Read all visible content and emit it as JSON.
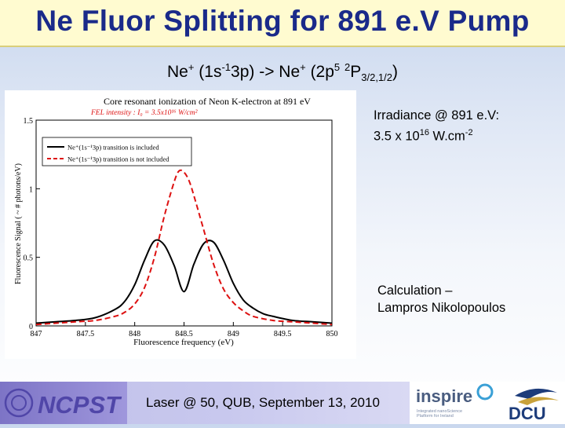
{
  "slide": {
    "title": "Ne Fluor Splitting for 891 e.V Pump",
    "subtitle": {
      "p1": "Ne",
      "s1": "+",
      "p2": " (1s",
      "s2": "-1",
      "p3": "3p) -> Ne",
      "s3": "+",
      "p4": " (2p",
      "s4": "5",
      "p5": " ",
      "s5": "2",
      "p6": "P",
      "sub": "3/2,1/2",
      "p7": ")"
    },
    "irradiance": {
      "line1": "Irradiance @ 891 e.V:",
      "line2a": "3.5 x 10",
      "line2sup": "16",
      "line2b": " W.cm",
      "line2sup2": "-2"
    },
    "credit": {
      "line1": "Calculation –",
      "line2": "Lampros Nikolopoulos"
    },
    "footer": {
      "logo_text": "NCPST",
      "text": "Laser @ 50, QUB, September 13, 2010",
      "inspire": "inspire",
      "inspire_sub": "Integrated nanoScience Platform for Ireland",
      "dcu": "DCU"
    }
  },
  "colors": {
    "series1": "#000000",
    "series2": "#dd1111",
    "title": "#1a2a8a"
  },
  "chart_data": {
    "type": "line",
    "title": "Core resonant ionization of Neon K-electron at 891 eV",
    "subtitle": "FEL intensity : I₀ = 3.5x10¹⁶ W/cm²",
    "xlabel": "Fluorescence frequency (eV)",
    "ylabel": "Fluorescence Signal ( ~ # photons/eV)",
    "xlim": [
      847,
      850
    ],
    "ylim": [
      0,
      1.5
    ],
    "xticks": [
      847,
      847.5,
      848,
      848.5,
      849,
      849.5,
      850
    ],
    "yticks": [
      0,
      0.5,
      1,
      1.5
    ],
    "xtick_labels": [
      "847",
      "847.5",
      "848",
      "848.5",
      "849",
      "849.5",
      "850"
    ],
    "ytick_labels": [
      "0",
      "0.5",
      "1",
      "1.5"
    ],
    "legend": "top-left",
    "series": [
      {
        "name": "Ne⁺(1s⁻¹3p) transition is included",
        "color": "#000000",
        "style": "solid",
        "x": [
          847,
          847.2,
          847.4,
          847.6,
          847.8,
          847.9,
          848.0,
          848.1,
          848.2,
          848.3,
          848.4,
          848.5,
          848.6,
          848.7,
          848.8,
          848.9,
          849.0,
          849.1,
          849.2,
          849.3,
          849.4,
          849.6,
          849.8,
          850
        ],
        "y": [
          0.02,
          0.03,
          0.04,
          0.06,
          0.12,
          0.18,
          0.3,
          0.48,
          0.62,
          0.59,
          0.44,
          0.25,
          0.45,
          0.6,
          0.61,
          0.48,
          0.31,
          0.19,
          0.13,
          0.09,
          0.07,
          0.04,
          0.03,
          0.02
        ]
      },
      {
        "name": "Ne⁺(1s⁻¹3p) transition is not included",
        "color": "#dd1111",
        "style": "dashed",
        "x": [
          847,
          847.2,
          847.4,
          847.6,
          847.8,
          847.9,
          848.0,
          848.1,
          848.2,
          848.3,
          848.4,
          848.45,
          848.5,
          848.55,
          848.6,
          848.7,
          848.8,
          848.9,
          849.0,
          849.1,
          849.2,
          849.4,
          849.6,
          849.8,
          850
        ],
        "y": [
          0.01,
          0.02,
          0.03,
          0.04,
          0.07,
          0.1,
          0.16,
          0.28,
          0.5,
          0.8,
          1.05,
          1.13,
          1.12,
          1.06,
          0.95,
          0.7,
          0.45,
          0.27,
          0.17,
          0.11,
          0.07,
          0.04,
          0.03,
          0.02,
          0.01
        ]
      }
    ]
  }
}
